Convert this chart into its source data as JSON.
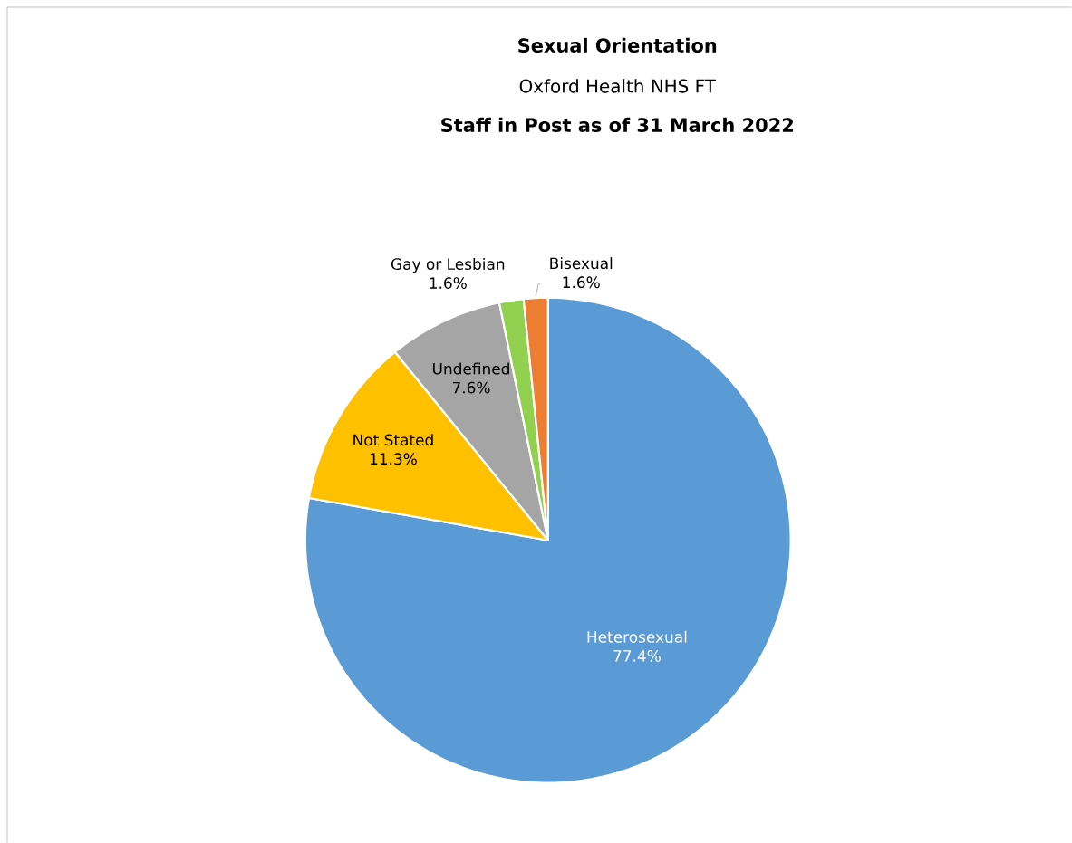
{
  "chart_data": {
    "type": "pie",
    "title": "Sexual Orientation",
    "subtitle": "Oxford Health NHS FT",
    "annotations": [
      "Staff in Post as of 31 March 2022"
    ],
    "categories": [
      "Heterosexual",
      "Not Stated",
      "Undefined",
      "Gay or Lesbian",
      "Bisexual"
    ],
    "values": [
      77.4,
      11.3,
      7.6,
      1.6,
      1.6
    ],
    "value_labels": [
      "77.4%",
      "11.3%",
      "7.6%",
      "1.6%",
      "1.6%"
    ],
    "colors": [
      "#5b9bd5",
      "#ffc000",
      "#a5a5a5",
      "#92d050",
      "#ed7d31"
    ]
  }
}
